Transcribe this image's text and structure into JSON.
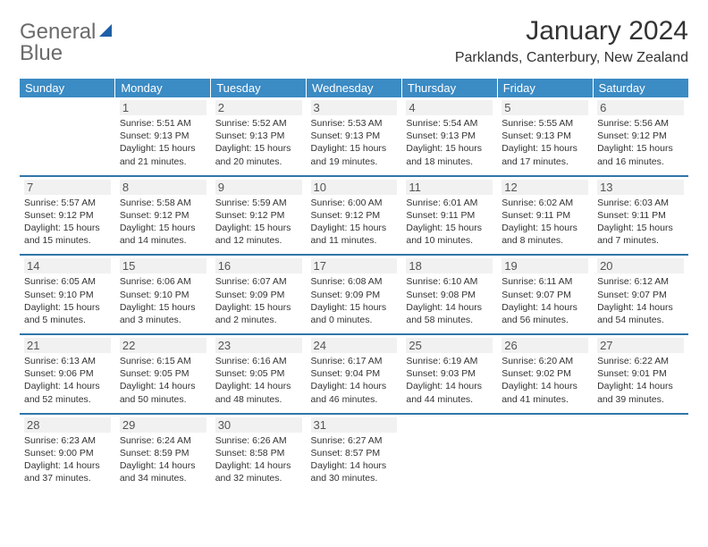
{
  "logo": {
    "text1": "General",
    "text2": "Blue"
  },
  "title": "January 2024",
  "location": "Parklands, Canterbury, New Zealand",
  "colors": {
    "header_bg": "#3b8bc4",
    "border": "#3176a8",
    "logo_gray": "#6b6b6b",
    "logo_blue": "#1f77c4",
    "daynum_bg": "#f1f1f1"
  },
  "daysOfWeek": [
    "Sunday",
    "Monday",
    "Tuesday",
    "Wednesday",
    "Thursday",
    "Friday",
    "Saturday"
  ],
  "weeks": [
    [
      {
        "n": "",
        "sunrise": "",
        "sunset": "",
        "daylight": ""
      },
      {
        "n": "1",
        "sunrise": "5:51 AM",
        "sunset": "9:13 PM",
        "daylight": "15 hours and 21 minutes."
      },
      {
        "n": "2",
        "sunrise": "5:52 AM",
        "sunset": "9:13 PM",
        "daylight": "15 hours and 20 minutes."
      },
      {
        "n": "3",
        "sunrise": "5:53 AM",
        "sunset": "9:13 PM",
        "daylight": "15 hours and 19 minutes."
      },
      {
        "n": "4",
        "sunrise": "5:54 AM",
        "sunset": "9:13 PM",
        "daylight": "15 hours and 18 minutes."
      },
      {
        "n": "5",
        "sunrise": "5:55 AM",
        "sunset": "9:13 PM",
        "daylight": "15 hours and 17 minutes."
      },
      {
        "n": "6",
        "sunrise": "5:56 AM",
        "sunset": "9:12 PM",
        "daylight": "15 hours and 16 minutes."
      }
    ],
    [
      {
        "n": "7",
        "sunrise": "5:57 AM",
        "sunset": "9:12 PM",
        "daylight": "15 hours and 15 minutes."
      },
      {
        "n": "8",
        "sunrise": "5:58 AM",
        "sunset": "9:12 PM",
        "daylight": "15 hours and 14 minutes."
      },
      {
        "n": "9",
        "sunrise": "5:59 AM",
        "sunset": "9:12 PM",
        "daylight": "15 hours and 12 minutes."
      },
      {
        "n": "10",
        "sunrise": "6:00 AM",
        "sunset": "9:12 PM",
        "daylight": "15 hours and 11 minutes."
      },
      {
        "n": "11",
        "sunrise": "6:01 AM",
        "sunset": "9:11 PM",
        "daylight": "15 hours and 10 minutes."
      },
      {
        "n": "12",
        "sunrise": "6:02 AM",
        "sunset": "9:11 PM",
        "daylight": "15 hours and 8 minutes."
      },
      {
        "n": "13",
        "sunrise": "6:03 AM",
        "sunset": "9:11 PM",
        "daylight": "15 hours and 7 minutes."
      }
    ],
    [
      {
        "n": "14",
        "sunrise": "6:05 AM",
        "sunset": "9:10 PM",
        "daylight": "15 hours and 5 minutes."
      },
      {
        "n": "15",
        "sunrise": "6:06 AM",
        "sunset": "9:10 PM",
        "daylight": "15 hours and 3 minutes."
      },
      {
        "n": "16",
        "sunrise": "6:07 AM",
        "sunset": "9:09 PM",
        "daylight": "15 hours and 2 minutes."
      },
      {
        "n": "17",
        "sunrise": "6:08 AM",
        "sunset": "9:09 PM",
        "daylight": "15 hours and 0 minutes."
      },
      {
        "n": "18",
        "sunrise": "6:10 AM",
        "sunset": "9:08 PM",
        "daylight": "14 hours and 58 minutes."
      },
      {
        "n": "19",
        "sunrise": "6:11 AM",
        "sunset": "9:07 PM",
        "daylight": "14 hours and 56 minutes."
      },
      {
        "n": "20",
        "sunrise": "6:12 AM",
        "sunset": "9:07 PM",
        "daylight": "14 hours and 54 minutes."
      }
    ],
    [
      {
        "n": "21",
        "sunrise": "6:13 AM",
        "sunset": "9:06 PM",
        "daylight": "14 hours and 52 minutes."
      },
      {
        "n": "22",
        "sunrise": "6:15 AM",
        "sunset": "9:05 PM",
        "daylight": "14 hours and 50 minutes."
      },
      {
        "n": "23",
        "sunrise": "6:16 AM",
        "sunset": "9:05 PM",
        "daylight": "14 hours and 48 minutes."
      },
      {
        "n": "24",
        "sunrise": "6:17 AM",
        "sunset": "9:04 PM",
        "daylight": "14 hours and 46 minutes."
      },
      {
        "n": "25",
        "sunrise": "6:19 AM",
        "sunset": "9:03 PM",
        "daylight": "14 hours and 44 minutes."
      },
      {
        "n": "26",
        "sunrise": "6:20 AM",
        "sunset": "9:02 PM",
        "daylight": "14 hours and 41 minutes."
      },
      {
        "n": "27",
        "sunrise": "6:22 AM",
        "sunset": "9:01 PM",
        "daylight": "14 hours and 39 minutes."
      }
    ],
    [
      {
        "n": "28",
        "sunrise": "6:23 AM",
        "sunset": "9:00 PM",
        "daylight": "14 hours and 37 minutes."
      },
      {
        "n": "29",
        "sunrise": "6:24 AM",
        "sunset": "8:59 PM",
        "daylight": "14 hours and 34 minutes."
      },
      {
        "n": "30",
        "sunrise": "6:26 AM",
        "sunset": "8:58 PM",
        "daylight": "14 hours and 32 minutes."
      },
      {
        "n": "31",
        "sunrise": "6:27 AM",
        "sunset": "8:57 PM",
        "daylight": "14 hours and 30 minutes."
      },
      {
        "n": "",
        "sunrise": "",
        "sunset": "",
        "daylight": ""
      },
      {
        "n": "",
        "sunrise": "",
        "sunset": "",
        "daylight": ""
      },
      {
        "n": "",
        "sunrise": "",
        "sunset": "",
        "daylight": ""
      }
    ]
  ],
  "labels": {
    "sunrise": "Sunrise: ",
    "sunset": "Sunset: ",
    "daylight": "Daylight: "
  }
}
